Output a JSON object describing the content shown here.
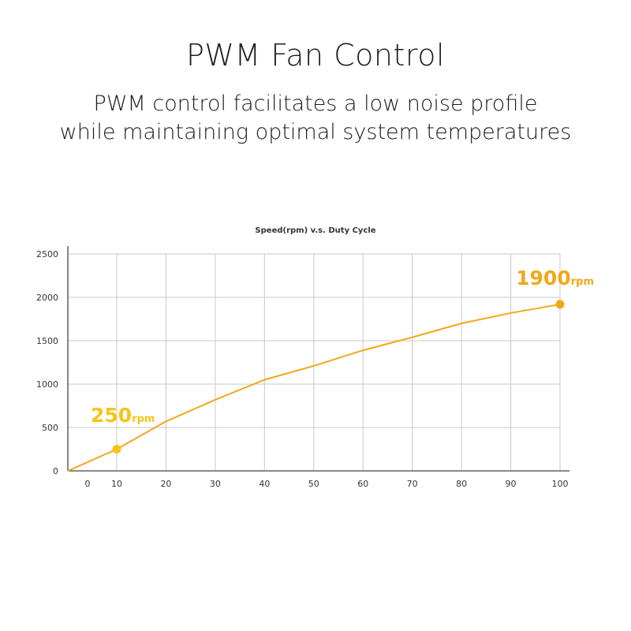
{
  "header": {
    "title": "PWM Fan Control",
    "subtitle_line1": "PWM control facilitates a low noise profile",
    "subtitle_line2": "while maintaining optimal system temperatures"
  },
  "colors": {
    "line": "#f2a71b",
    "point_low": "#f5c518",
    "point_high": "#f2a71b",
    "grid": "#c8c8c8",
    "axis": "#444444"
  },
  "chart_data": {
    "type": "line",
    "title": "Speed(rpm)  v.s.  Duty Cycle",
    "xlabel": "",
    "ylabel": "",
    "x_ticks": [
      0,
      10,
      20,
      30,
      40,
      50,
      60,
      70,
      80,
      90,
      100
    ],
    "y_ticks": [
      0,
      500,
      1000,
      1500,
      2000,
      2500
    ],
    "ylim": [
      0,
      2500
    ],
    "grid": true,
    "series": [
      {
        "x": [
          0,
          10,
          20,
          30,
          40,
          50,
          60,
          70,
          80,
          90,
          100
        ],
        "y": [
          0,
          250,
          570,
          820,
          1050,
          1210,
          1390,
          1540,
          1700,
          1820,
          1920
        ]
      }
    ],
    "annotations": [
      {
        "x": 10,
        "y": 250,
        "value": "250",
        "unit": "rpm"
      },
      {
        "x": 100,
        "y": 1920,
        "value": "1900",
        "unit": "rpm"
      }
    ]
  }
}
